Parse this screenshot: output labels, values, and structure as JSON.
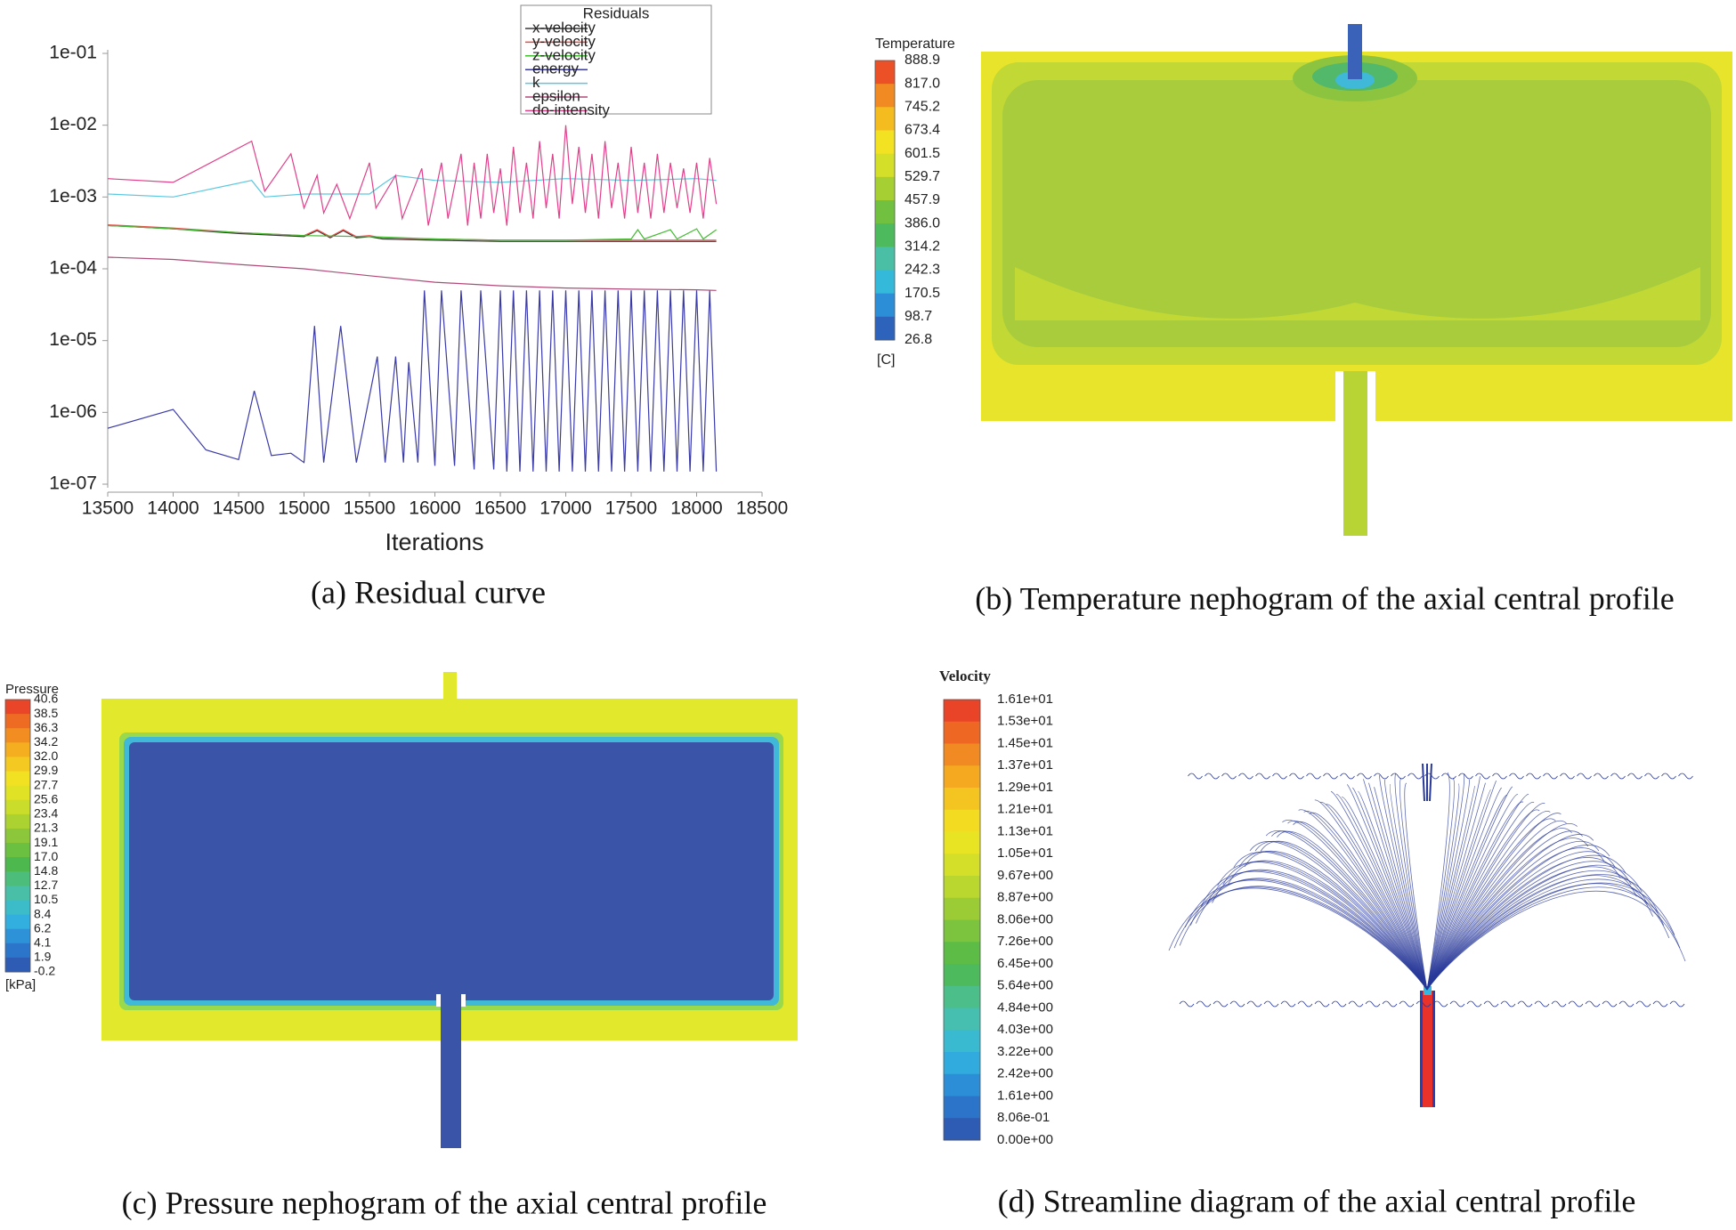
{
  "chart_data": {
    "type": "line",
    "y_scale": "log",
    "x_label": "Iterations",
    "legend_title": "Residuals",
    "legend": "upper-right",
    "xlim": [
      13500,
      18500
    ],
    "xticks": [
      13500,
      14000,
      14500,
      15000,
      15500,
      16000,
      16500,
      17000,
      17500,
      18000,
      18500
    ],
    "ylim": [
      1e-07,
      0.1
    ],
    "yticks": [
      {
        "value": 1e-07,
        "label": "1e-07"
      },
      {
        "value": 1e-06,
        "label": "1e-06"
      },
      {
        "value": 1e-05,
        "label": "1e-05"
      },
      {
        "value": 0.0001,
        "label": "1e-04"
      },
      {
        "value": 0.001,
        "label": "1e-03"
      },
      {
        "value": 0.01,
        "label": "1e-02"
      },
      {
        "value": 0.1,
        "label": "1e-01"
      }
    ],
    "series": [
      {
        "name": "x-velocity",
        "color": "#3a3a3a",
        "x": [
          13500,
          14000,
          14500,
          15000,
          15100,
          15200,
          15300,
          15400,
          15500,
          15600,
          16000,
          16500,
          17000,
          17500,
          18000,
          18150
        ],
        "values": [
          0.0004,
          0.00036,
          0.00031,
          0.00028,
          0.00034,
          0.00027,
          0.00034,
          0.00027,
          0.00028,
          0.00026,
          0.00025,
          0.00024,
          0.00024,
          0.00024,
          0.00024,
          0.00024
        ]
      },
      {
        "name": "y-velocity",
        "color": "#e8504a",
        "x": [
          13500,
          14000,
          14500,
          15000,
          15100,
          15200,
          15300,
          15400,
          15500,
          15600,
          16000,
          16500,
          17000,
          17500,
          18000,
          18150
        ],
        "values": [
          0.00041,
          0.00037,
          0.00032,
          0.00029,
          0.00035,
          0.00028,
          0.00035,
          0.00028,
          0.00029,
          0.00027,
          0.00026,
          0.00025,
          0.00025,
          0.00025,
          0.00025,
          0.00025
        ]
      },
      {
        "name": "z-velocity",
        "color": "#44bb33",
        "x": [
          13500,
          14000,
          14500,
          15000,
          15500,
          16000,
          16500,
          17000,
          17500,
          17550,
          17600,
          17800,
          17850,
          18000,
          18050,
          18150
        ],
        "values": [
          0.0004,
          0.00036,
          0.00032,
          0.00029,
          0.00028,
          0.00026,
          0.00025,
          0.00025,
          0.00026,
          0.00035,
          0.00026,
          0.00035,
          0.00026,
          0.00036,
          0.00026,
          0.00035
        ]
      },
      {
        "name": "energy",
        "color": "#3a3aa8",
        "x": [
          13500,
          14000,
          14250,
          14500,
          14620,
          14750,
          14900,
          15000,
          15080,
          15150,
          15280,
          15400,
          15560,
          15620,
          15700,
          15760,
          15800,
          15870,
          15920,
          16000,
          16050,
          16150,
          16200,
          16300,
          16350,
          16450,
          16500,
          16550,
          16600,
          16650,
          16700,
          16750,
          16800,
          16850,
          16900,
          16950,
          17000,
          17050,
          17100,
          17150,
          17200,
          17250,
          17300,
          17350,
          17400,
          17450,
          17500,
          17550,
          17600,
          17650,
          17700,
          17750,
          17800,
          17850,
          17900,
          17950,
          18000,
          18050,
          18100,
          18150
        ],
        "values": [
          6e-07,
          1.1e-06,
          3e-07,
          2.2e-07,
          2e-06,
          2.5e-07,
          2.7e-07,
          2e-07,
          1.6e-05,
          2e-07,
          1.6e-05,
          2e-07,
          6e-06,
          2e-07,
          6e-06,
          2e-07,
          5e-06,
          2e-07,
          5e-05,
          1.8e-07,
          5e-05,
          1.8e-07,
          5e-05,
          1.6e-07,
          5e-05,
          1.6e-07,
          5e-05,
          1.5e-07,
          5e-05,
          1.5e-07,
          5e-05,
          1.5e-07,
          5e-05,
          1.5e-07,
          5e-05,
          1.5e-07,
          5e-05,
          1.5e-07,
          5e-05,
          1.5e-07,
          5e-05,
          1.5e-07,
          5e-05,
          1.5e-07,
          5e-05,
          1.5e-07,
          5e-05,
          1.5e-07,
          5e-05,
          1.5e-07,
          5e-05,
          1.5e-07,
          5e-05,
          1.5e-07,
          5e-05,
          1.5e-07,
          5e-05,
          1.5e-07,
          5e-05,
          1.5e-07
        ]
      },
      {
        "name": "k",
        "color": "#5cc8e0",
        "x": [
          13500,
          14000,
          14600,
          14700,
          15000,
          15500,
          15600,
          15700,
          16000,
          16500,
          17000,
          17500,
          18000,
          18150
        ],
        "values": [
          0.0011,
          0.001,
          0.0017,
          0.001,
          0.0011,
          0.0011,
          0.0015,
          0.002,
          0.0017,
          0.0016,
          0.0018,
          0.0017,
          0.0018,
          0.0017
        ]
      },
      {
        "name": "epsilon",
        "color": "#b04a78",
        "x": [
          13500,
          14000,
          14500,
          15000,
          15500,
          16000,
          16500,
          17000,
          17500,
          18000,
          18150
        ],
        "values": [
          0.000145,
          0.000135,
          0.000115,
          0.0001,
          8e-05,
          6.5e-05,
          5.8e-05,
          5.4e-05,
          5.2e-05,
          5.1e-05,
          5e-05
        ]
      },
      {
        "name": "do-intensity",
        "color": "#e0408a",
        "x": [
          13500,
          14000,
          14600,
          14700,
          14900,
          15000,
          15100,
          15150,
          15250,
          15350,
          15500,
          15550,
          15700,
          15750,
          15900,
          15950,
          16050,
          16100,
          16200,
          16250,
          16300,
          16350,
          16400,
          16450,
          16500,
          16550,
          16600,
          16650,
          16700,
          16750,
          16800,
          16850,
          16900,
          16950,
          17000,
          17050,
          17100,
          17150,
          17200,
          17250,
          17300,
          17350,
          17400,
          17450,
          17500,
          17550,
          17600,
          17650,
          17700,
          17750,
          17800,
          17850,
          17900,
          17950,
          18000,
          18050,
          18100,
          18150
        ],
        "values": [
          0.0018,
          0.0016,
          0.006,
          0.0012,
          0.004,
          0.0007,
          0.002,
          0.0006,
          0.0015,
          0.0005,
          0.003,
          0.0007,
          0.002,
          0.0005,
          0.0025,
          0.0004,
          0.003,
          0.0005,
          0.004,
          0.0004,
          0.003,
          0.0005,
          0.004,
          0.0006,
          0.0025,
          0.0004,
          0.005,
          0.0006,
          0.003,
          0.0005,
          0.006,
          0.0007,
          0.004,
          0.0005,
          0.01,
          0.0008,
          0.005,
          0.0006,
          0.004,
          0.0005,
          0.006,
          0.0007,
          0.003,
          0.0005,
          0.005,
          0.0006,
          0.003,
          0.0005,
          0.004,
          0.0006,
          0.003,
          0.0007,
          0.0025,
          0.0006,
          0.003,
          0.0005,
          0.0035,
          0.0008
        ]
      }
    ]
  },
  "panels": {
    "a": {
      "caption": "(a) Residual curve"
    },
    "b": {
      "caption": "(b) Temperature nephogram of the axial central profile",
      "colorbar": {
        "title": "Temperature",
        "unit": "[C]",
        "labels": [
          "888.9",
          "817.0",
          "745.2",
          "673.4",
          "601.5",
          "529.7",
          "457.9",
          "386.0",
          "314.2",
          "242.3",
          "170.5",
          "98.7",
          "26.8"
        ]
      }
    },
    "c": {
      "caption": "(c) Pressure nephogram of the axial central profile",
      "colorbar": {
        "title": "Pressure",
        "unit": "[kPa]",
        "labels": [
          "40.6",
          "38.5",
          "36.3",
          "34.2",
          "32.0",
          "29.9",
          "27.7",
          "25.6",
          "23.4",
          "21.3",
          "19.1",
          "17.0",
          "14.8",
          "12.7",
          "10.5",
          "8.4",
          "6.2",
          "4.1",
          "1.9",
          "-0.2"
        ]
      }
    },
    "d": {
      "caption": "(d) Streamline diagram of the axial central profile",
      "colorbar": {
        "title": "Velocity",
        "labels": [
          "1.61e+01",
          "1.53e+01",
          "1.45e+01",
          "1.37e+01",
          "1.29e+01",
          "1.21e+01",
          "1.13e+01",
          "1.05e+01",
          "9.67e+00",
          "8.87e+00",
          "8.06e+00",
          "7.26e+00",
          "6.45e+00",
          "5.64e+00",
          "4.84e+00",
          "4.03e+00",
          "3.22e+00",
          "2.42e+00",
          "1.61e+00",
          "8.06e-01",
          "0.00e+00"
        ]
      }
    }
  }
}
